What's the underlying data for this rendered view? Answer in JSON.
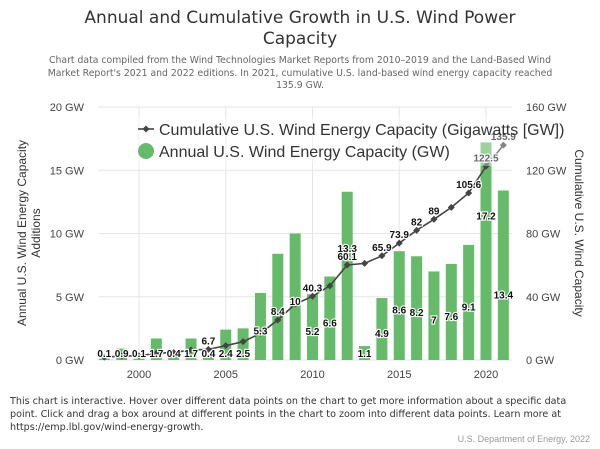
{
  "header": {
    "title_line1": "Annual and Cumulative Growth in U.S. Wind Power",
    "title_line2": "Capacity",
    "subtitle": "Chart data compiled from the Wind Technologies Market Reports from 2010–2019 and the Land-Based Wind Market Report's 2021 and 2022 editions. In 2021, cumulative U.S. land-based wind energy capacity reached 135.9 GW."
  },
  "footer": {
    "note": "This chart is interactive. Hover over different data points on the chart to get more information about a specific data point. Click and drag a box around at different points in the chart to zoom into different data points. Learn more at https://emp.lbl.gov/wind-energy-growth.",
    "credit": "U.S. Department of Energy, 2022"
  },
  "colors": {
    "bar": "#66bb6a",
    "line": "#444444",
    "grid": "#e6e6e6"
  },
  "chart_data": {
    "type": "bar",
    "title": "Annual and Cumulative Growth in U.S. Wind Power Capacity",
    "x": [
      1998,
      1999,
      2000,
      2001,
      2002,
      2003,
      2004,
      2005,
      2006,
      2007,
      2008,
      2009,
      2010,
      2011,
      2012,
      2013,
      2014,
      2015,
      2016,
      2017,
      2018,
      2019,
      2020,
      2021
    ],
    "x_ticks": [
      "2000",
      "2005",
      "2010",
      "2015",
      "2020"
    ],
    "x_tick_values": [
      2000,
      2005,
      2010,
      2015,
      2020
    ],
    "ylabel_left": "Annual U.S. Wind Energy Capacity Additions",
    "ylabel_right": "Cumulative U.S. Wind Capacity",
    "y_left_range": [
      0,
      20
    ],
    "y_left_ticks": [
      "0 GW",
      "5 GW",
      "10 GW",
      "15 GW",
      "20 GW"
    ],
    "y_left_tick_values": [
      0,
      5,
      10,
      15,
      20
    ],
    "y_right_range": [
      0,
      160
    ],
    "y_right_ticks": [
      "0 GW",
      "40 GW",
      "80 GW",
      "120 GW",
      "160 GW"
    ],
    "y_right_tick_values": [
      0,
      40,
      80,
      120,
      160
    ],
    "grid": true,
    "legend_position": "top-right",
    "series": [
      {
        "name": "Cumulative U.S. Wind Energy Capacity (Gigawatts [GW])",
        "type": "line",
        "axis": "right",
        "values": [
          1.8,
          2.5,
          2.6,
          4.3,
          4.7,
          6.4,
          6.7,
          9.1,
          11.6,
          16.9,
          25.3,
          35.3,
          40.3,
          46.9,
          60.1,
          61.1,
          65.9,
          73.9,
          82,
          89,
          96.5,
          105.6,
          122.5,
          135.9
        ],
        "labels": [
          "",
          "",
          "",
          "",
          "",
          "",
          "6.7",
          "",
          "",
          "",
          "",
          "",
          "40.3",
          "",
          "60.1",
          "",
          "65.9",
          "73.9",
          "82",
          "89",
          "",
          "105.6",
          "122.5",
          "135.9"
        ]
      },
      {
        "name": "Annual U.S. Wind Energy Capacity (GW)",
        "type": "bar",
        "axis": "left",
        "values": [
          0.1,
          0.9,
          0.1,
          1.7,
          0.4,
          1.7,
          0.4,
          2.4,
          2.5,
          5.3,
          8.4,
          10,
          5.2,
          6.6,
          13.3,
          1.1,
          4.9,
          8.6,
          8.2,
          7,
          7.6,
          9.1,
          17.2,
          13.4
        ],
        "labels": [
          "0.1",
          "0.9",
          "0.1",
          "1.7",
          "0.4",
          "1.7",
          "0.4",
          "2.4",
          "2.5",
          "5.3",
          "8.4",
          "10",
          "5.2",
          "6.6",
          "13.3",
          "1.1",
          "4.9",
          "8.6",
          "8.2",
          "7",
          "7.6",
          "9.1",
          "17.2",
          "13.4"
        ]
      }
    ]
  }
}
